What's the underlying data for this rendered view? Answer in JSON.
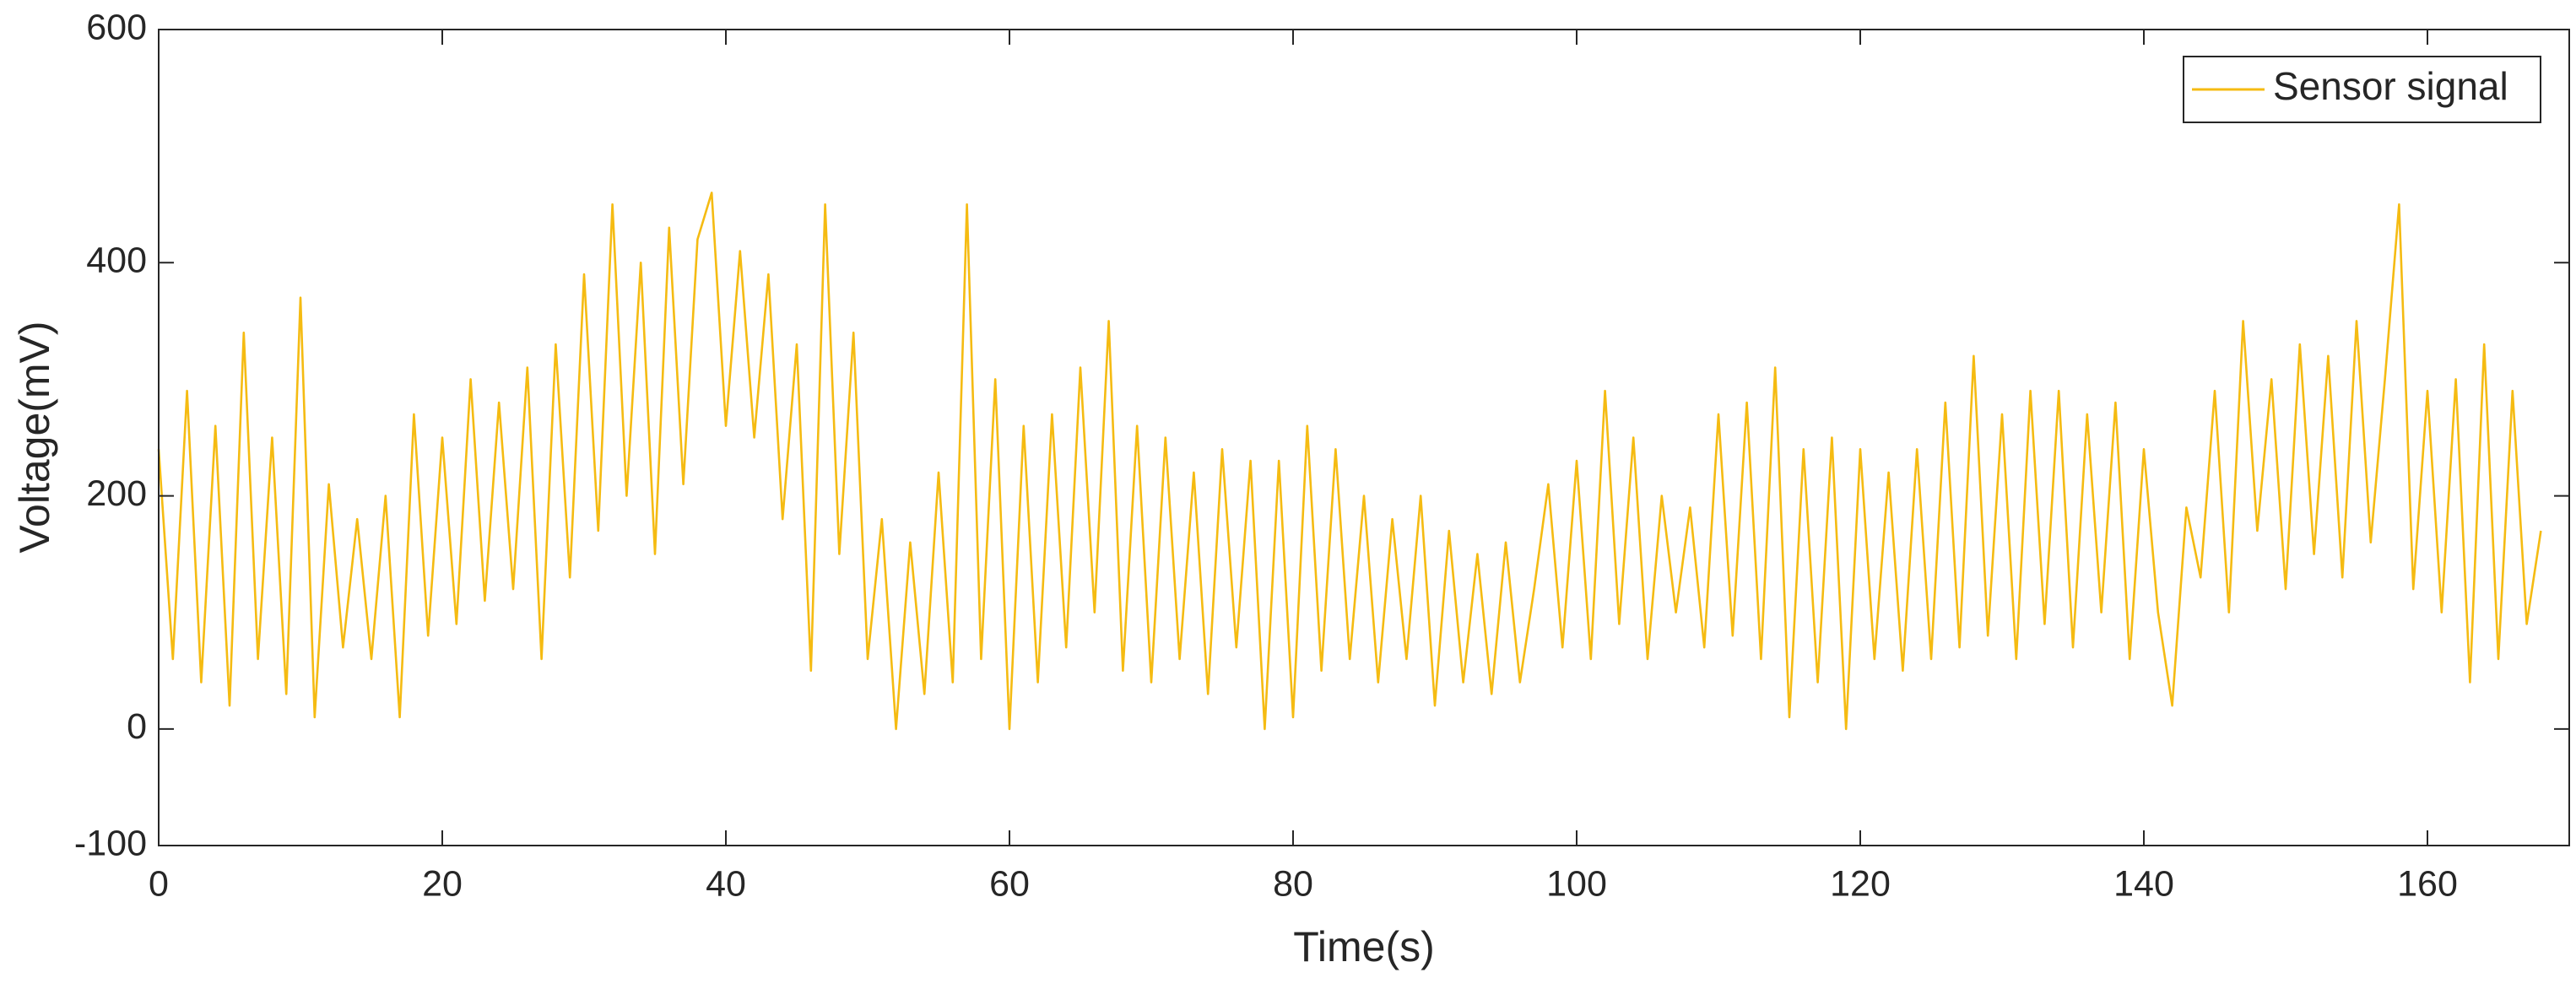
{
  "chart_data": {
    "type": "line",
    "xlabel": "Time(s)",
    "ylabel": "Voltage(mV)",
    "xlim": [
      0,
      170
    ],
    "ylim": [
      -100,
      600
    ],
    "xticks": [
      0,
      20,
      40,
      60,
      80,
      100,
      120,
      140,
      160
    ],
    "yticks": [
      -100,
      0,
      200,
      400,
      600
    ],
    "legend": "northeast",
    "x": [
      0,
      1,
      2,
      3,
      4,
      5,
      6,
      7,
      8,
      9,
      10,
      11,
      12,
      13,
      14,
      15,
      16,
      17,
      18,
      19,
      20,
      21,
      22,
      23,
      24,
      25,
      26,
      27,
      28,
      29,
      30,
      31,
      32,
      33,
      34,
      35,
      36,
      37,
      38,
      39,
      40,
      41,
      42,
      43,
      44,
      45,
      46,
      47,
      48,
      49,
      50,
      51,
      52,
      53,
      54,
      55,
      56,
      57,
      58,
      59,
      60,
      61,
      62,
      63,
      64,
      65,
      66,
      67,
      68,
      69,
      70,
      71,
      72,
      73,
      74,
      75,
      76,
      77,
      78,
      79,
      80,
      81,
      82,
      83,
      84,
      85,
      86,
      87,
      88,
      89,
      90,
      91,
      92,
      93,
      94,
      95,
      96,
      97,
      98,
      99,
      100,
      101,
      102,
      103,
      104,
      105,
      106,
      107,
      108,
      109,
      110,
      111,
      112,
      113,
      114,
      115,
      116,
      117,
      118,
      119,
      120,
      121,
      122,
      123,
      124,
      125,
      126,
      127,
      128,
      129,
      130,
      131,
      132,
      133,
      134,
      135,
      136,
      137,
      138,
      139,
      140,
      141,
      142,
      143,
      144,
      145,
      146,
      147,
      148,
      149,
      150,
      151,
      152,
      153,
      154,
      155,
      156,
      157,
      158,
      159,
      160,
      161,
      162,
      163,
      164,
      165,
      166,
      167,
      168
    ],
    "series": [
      {
        "name": "Sensor signal",
        "color": "#f5bb12",
        "values": [
          240,
          60,
          290,
          40,
          260,
          20,
          340,
          60,
          250,
          30,
          370,
          10,
          210,
          70,
          180,
          60,
          200,
          10,
          270,
          80,
          250,
          90,
          300,
          110,
          280,
          120,
          310,
          60,
          330,
          130,
          390,
          170,
          450,
          200,
          400,
          150,
          430,
          210,
          420,
          460,
          260,
          410,
          250,
          390,
          180,
          330,
          50,
          450,
          150,
          340,
          60,
          180,
          0,
          160,
          30,
          220,
          40,
          450,
          60,
          300,
          0,
          260,
          40,
          270,
          70,
          310,
          100,
          350,
          50,
          260,
          40,
          250,
          60,
          220,
          30,
          240,
          70,
          230,
          0,
          230,
          10,
          260,
          50,
          240,
          60,
          200,
          40,
          180,
          60,
          200,
          20,
          170,
          40,
          150,
          30,
          160,
          40,
          120,
          210,
          70,
          230,
          60,
          290,
          90,
          250,
          60,
          200,
          100,
          190,
          70,
          270,
          80,
          280,
          60,
          310,
          10,
          240,
          40,
          250,
          0,
          240,
          60,
          220,
          50,
          240,
          60,
          280,
          70,
          320,
          80,
          270,
          60,
          290,
          90,
          290,
          70,
          270,
          100,
          280,
          60,
          240,
          100,
          20,
          190,
          130,
          290,
          100,
          350,
          170,
          300,
          120,
          330,
          150,
          320,
          130,
          350,
          160,
          300,
          450,
          120,
          290,
          100,
          300,
          40,
          330,
          60,
          290,
          90,
          170
        ]
      }
    ]
  }
}
